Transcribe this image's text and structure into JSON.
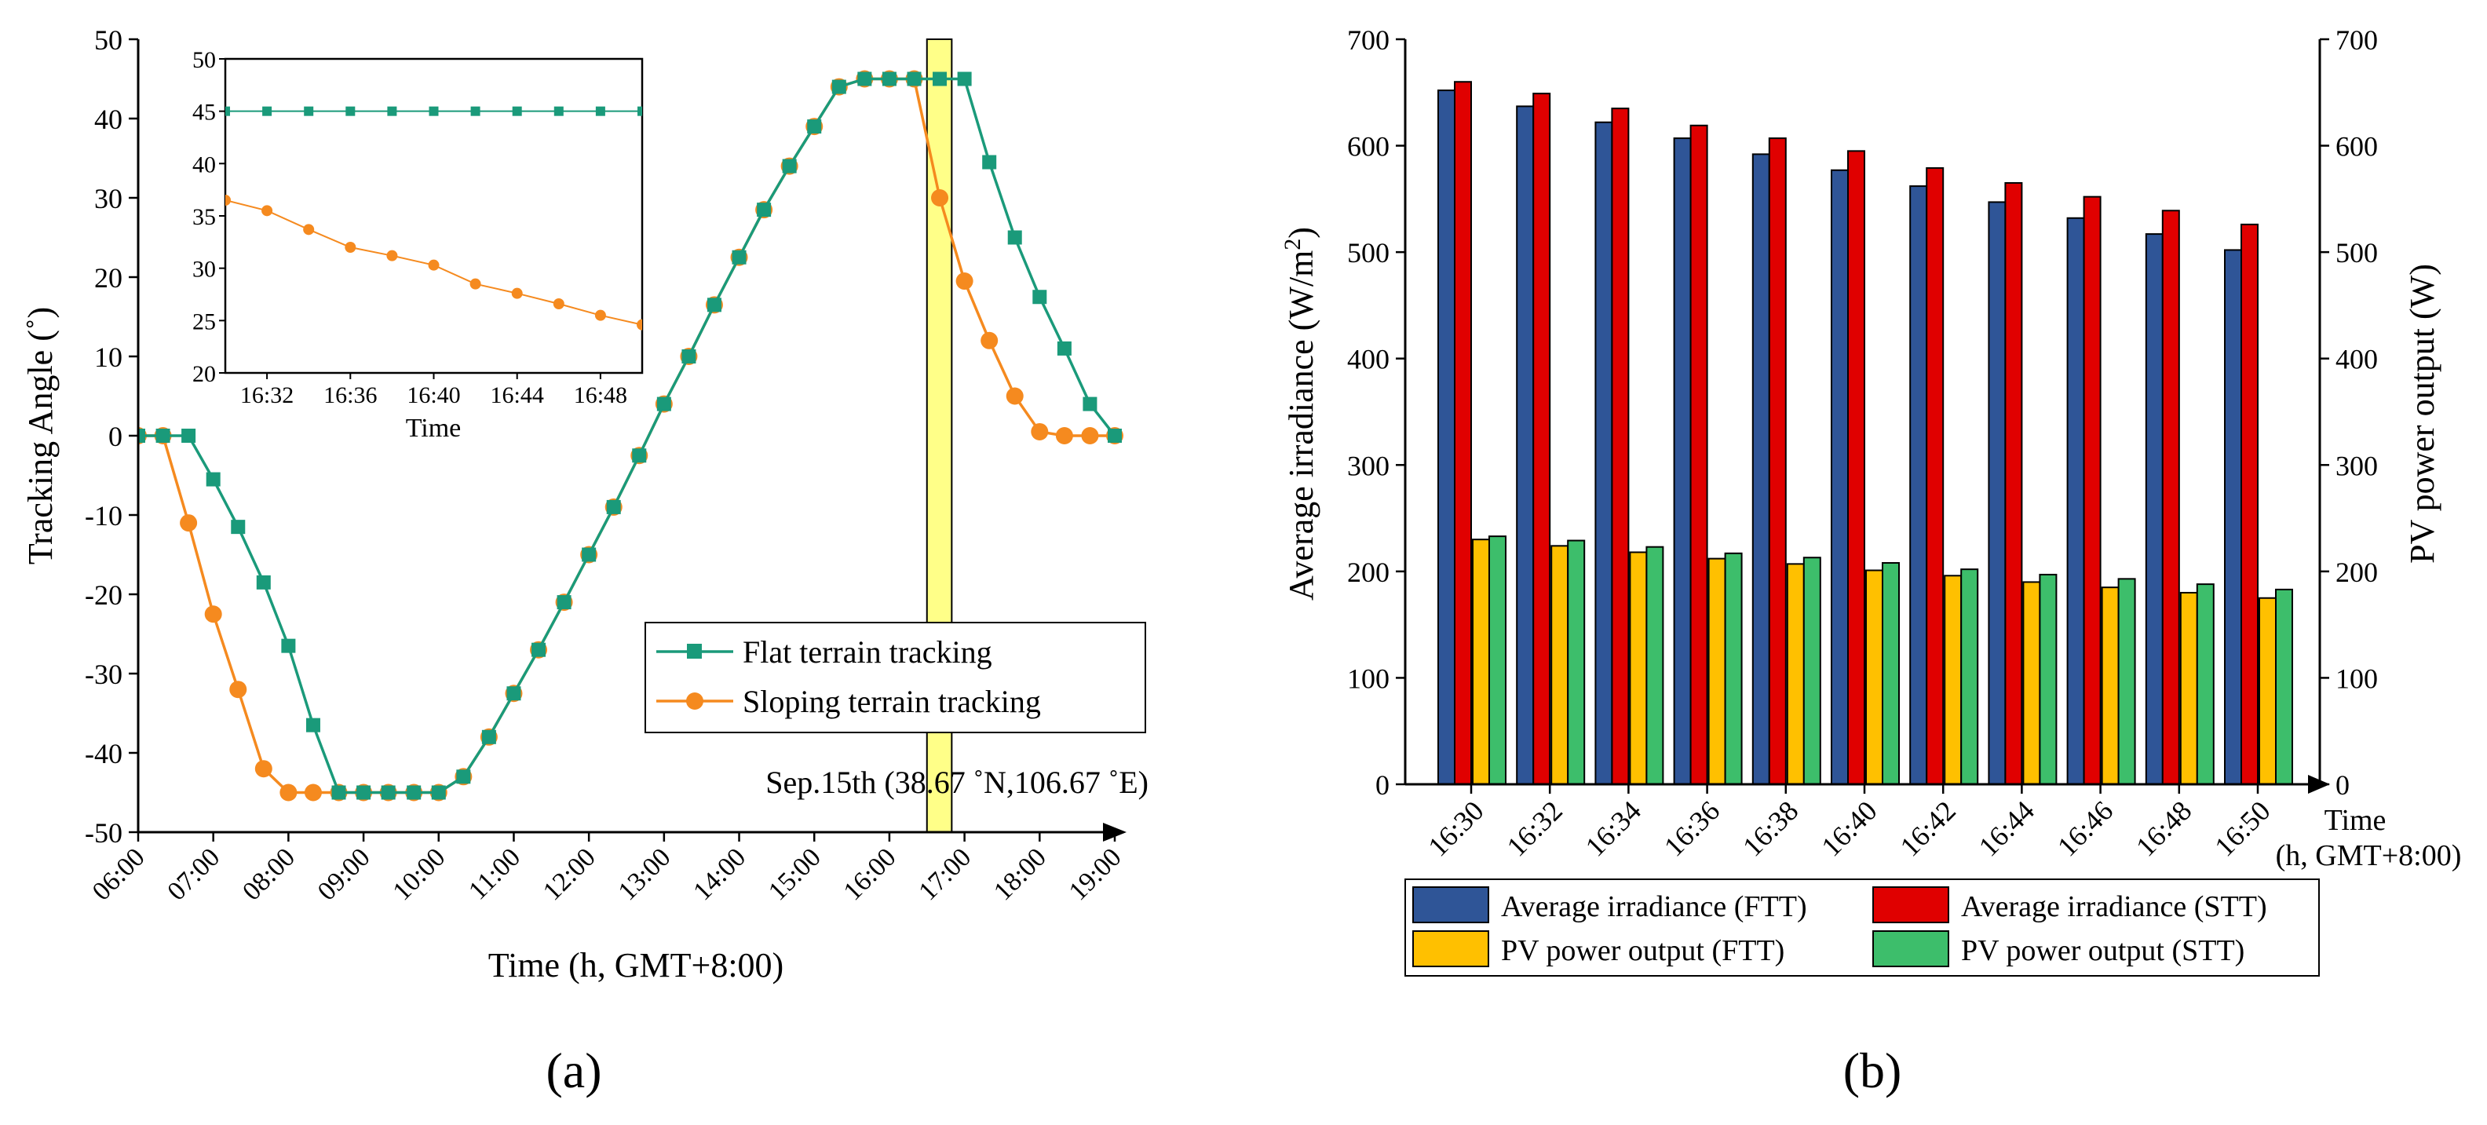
{
  "panels": {
    "a_label": "(a)",
    "b_label": "(b)"
  },
  "colors": {
    "flat": "#1A9A7A",
    "sloping": "#F58A1F",
    "highlight_fill": "#FFFF88",
    "irr_ftt": "#2F5597",
    "irr_stt": "#E00000",
    "pv_ftt": "#FFC000",
    "pv_stt": "#3DBE6B"
  },
  "chart_data": [
    {
      "id": "a-main",
      "type": "line",
      "ylabel": "Tracking Angle (˚)",
      "xlabel": "Time (h, GMT+8:00)",
      "ylim": [
        -50,
        50
      ],
      "yticks": [
        -50,
        -40,
        -30,
        -20,
        -10,
        0,
        10,
        20,
        30,
        40,
        50
      ],
      "xlim": [
        6,
        19
      ],
      "xticks": [
        6,
        7,
        8,
        9,
        10,
        11,
        12,
        13,
        14,
        15,
        16,
        17,
        18,
        19
      ],
      "xtick_labels": [
        "06:00",
        "07:00",
        "08:00",
        "09:00",
        "10:00",
        "11:00",
        "12:00",
        "13:00",
        "14:00",
        "15:00",
        "16:00",
        "17:00",
        "18:00",
        "19:00"
      ],
      "highlight_x": [
        16.5,
        16.83
      ],
      "annotation": "Sep.15th (38.67 ˚N,106.67 ˚E)",
      "legend_position": "right",
      "series": [
        {
          "name": "Flat terrain tracking",
          "marker": "square",
          "x": [
            6.0,
            6.33,
            6.67,
            7.0,
            7.33,
            7.67,
            8.0,
            8.33,
            8.67,
            9.0,
            9.33,
            9.67,
            10.0,
            10.33,
            10.67,
            11.0,
            11.33,
            11.67,
            12.0,
            12.33,
            12.67,
            13.0,
            13.33,
            13.67,
            14.0,
            14.33,
            14.67,
            15.0,
            15.33,
            15.67,
            16.0,
            16.33,
            16.67,
            17.0,
            17.33,
            17.67,
            18.0,
            18.33,
            18.67,
            19.0
          ],
          "y": [
            0,
            0,
            0,
            -5.5,
            -11.5,
            -18.5,
            -26.5,
            -36.5,
            -45,
            -45,
            -45,
            -45,
            -45,
            -43,
            -38,
            -32.5,
            -27,
            -21,
            -15,
            -9,
            -2.5,
            4,
            10,
            16.5,
            22.5,
            28.5,
            34,
            39,
            44,
            45,
            45,
            45,
            45,
            45,
            34.5,
            25,
            17.5,
            11,
            4,
            0
          ]
        },
        {
          "name": "Sloping terrain tracking",
          "marker": "circle",
          "x": [
            6.0,
            6.33,
            6.67,
            7.0,
            7.33,
            7.67,
            8.0,
            8.33,
            8.67,
            9.0,
            9.33,
            9.67,
            10.0,
            10.33,
            10.67,
            11.0,
            11.33,
            11.67,
            12.0,
            12.33,
            12.67,
            13.0,
            13.33,
            13.67,
            14.0,
            14.33,
            14.67,
            15.0,
            15.33,
            15.67,
            16.0,
            16.33,
            16.67,
            17.0,
            17.33,
            17.67,
            18.0,
            18.33,
            18.67,
            19.0
          ],
          "y": [
            0,
            0,
            -11,
            -22.5,
            -32,
            -42,
            -45,
            -45,
            -45,
            -45,
            -45,
            -45,
            -45,
            -43,
            -38,
            -32.5,
            -27,
            -21,
            -15,
            -9,
            -2.5,
            4,
            10,
            16.5,
            22.5,
            28.5,
            34,
            39,
            44,
            45,
            45,
            45,
            30,
            19.5,
            12,
            5,
            0.5,
            0,
            0,
            0
          ]
        }
      ]
    },
    {
      "id": "a-inset",
      "type": "line",
      "xlabel": "Time",
      "ylim": [
        20,
        50
      ],
      "yticks": [
        20,
        25,
        30,
        35,
        40,
        45,
        50
      ],
      "xlim": [
        30,
        50
      ],
      "xticks": [
        32,
        36,
        40,
        44,
        48
      ],
      "xtick_labels": [
        "16:32",
        "16:36",
        "16:40",
        "16:44",
        "16:48"
      ],
      "series": [
        {
          "name": "Flat terrain tracking",
          "marker": "square",
          "x": [
            30,
            32,
            34,
            36,
            38,
            40,
            42,
            44,
            46,
            48,
            50
          ],
          "y": [
            45,
            45,
            45,
            45,
            45,
            45,
            45,
            45,
            45,
            45,
            45
          ]
        },
        {
          "name": "Sloping terrain tracking",
          "marker": "circle",
          "x": [
            30,
            32,
            34,
            36,
            38,
            40,
            42,
            44,
            46,
            48,
            50
          ],
          "y": [
            36.5,
            35.5,
            33.7,
            32,
            31.2,
            30.3,
            28.5,
            27.6,
            26.6,
            25.5,
            24.6
          ]
        }
      ]
    },
    {
      "id": "b",
      "type": "bar",
      "categories": [
        "16:30",
        "16:32",
        "16:34",
        "16:36",
        "16:38",
        "16:40",
        "16:42",
        "16:44",
        "16:46",
        "16:48",
        "16:50"
      ],
      "ylabel": "Average irradiance (W/m²)",
      "ylabel_main": "Average irradiance (W/m",
      "ylabel_sup": "2",
      "ylabel_end": ")",
      "y2label": "PV power output (W)",
      "xlabel": "Time",
      "xlabel_sub": "(h, GMT+8:00)",
      "ylim": [
        0,
        700
      ],
      "yticks": [
        0,
        100,
        200,
        300,
        400,
        500,
        600,
        700
      ],
      "y2lim": [
        0,
        700
      ],
      "legend_position": "bottom",
      "series": [
        {
          "name": "Average irradiance (FTT)",
          "axis": "left",
          "values": [
            652,
            637,
            622,
            607,
            592,
            577,
            562,
            547,
            532,
            517,
            502
          ]
        },
        {
          "name": "Average irradiance (STT)",
          "axis": "left",
          "values": [
            660,
            649,
            635,
            619,
            607,
            595,
            579,
            565,
            552,
            539,
            526
          ]
        },
        {
          "name": "PV power output (FTT)",
          "axis": "right",
          "values": [
            230,
            224,
            218,
            212,
            207,
            201,
            196,
            190,
            185,
            180,
            175
          ]
        },
        {
          "name": "PV power output (STT)",
          "axis": "right",
          "values": [
            233,
            229,
            223,
            217,
            213,
            208,
            202,
            197,
            193,
            188,
            183
          ]
        }
      ]
    }
  ]
}
